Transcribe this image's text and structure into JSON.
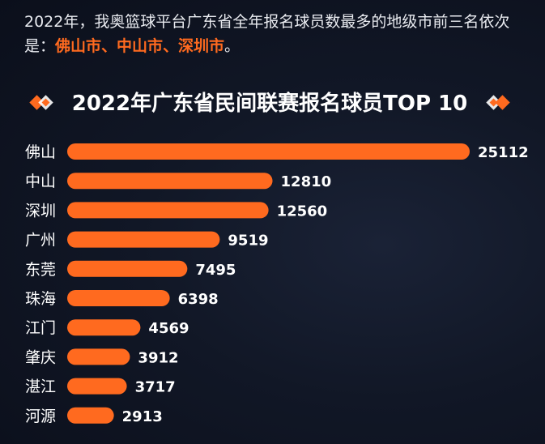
{
  "intro": {
    "text_before": "2022年，我奥篮球平台广东省全年报名球员数最多的地级市前三名依次是：",
    "highlight": "佛山市、中山市、深圳市",
    "text_after": "。"
  },
  "chart_data": {
    "type": "bar",
    "orientation": "horizontal",
    "title": "2022年广东省民间联赛报名球员TOP 10",
    "categories": [
      "佛山",
      "中山",
      "深圳",
      "广州",
      "东莞",
      "珠海",
      "江门",
      "肇庆",
      "湛江",
      "河源"
    ],
    "values": [
      25112,
      12810,
      12560,
      9519,
      7495,
      6398,
      4569,
      3912,
      3717,
      2913
    ],
    "value_labels": [
      "25112",
      "12810",
      "12560",
      "9519",
      "7495",
      "6398",
      "4569",
      "3912",
      "3717",
      "2913"
    ],
    "grid": false,
    "legend": "none"
  },
  "colors": {
    "bar": "#ff6a1f",
    "accent": "#ff6a1f",
    "text": "#ffffff",
    "background": "#111726"
  },
  "icons": {
    "title_left": "double-diamond-icon",
    "title_right": "double-diamond-icon"
  }
}
